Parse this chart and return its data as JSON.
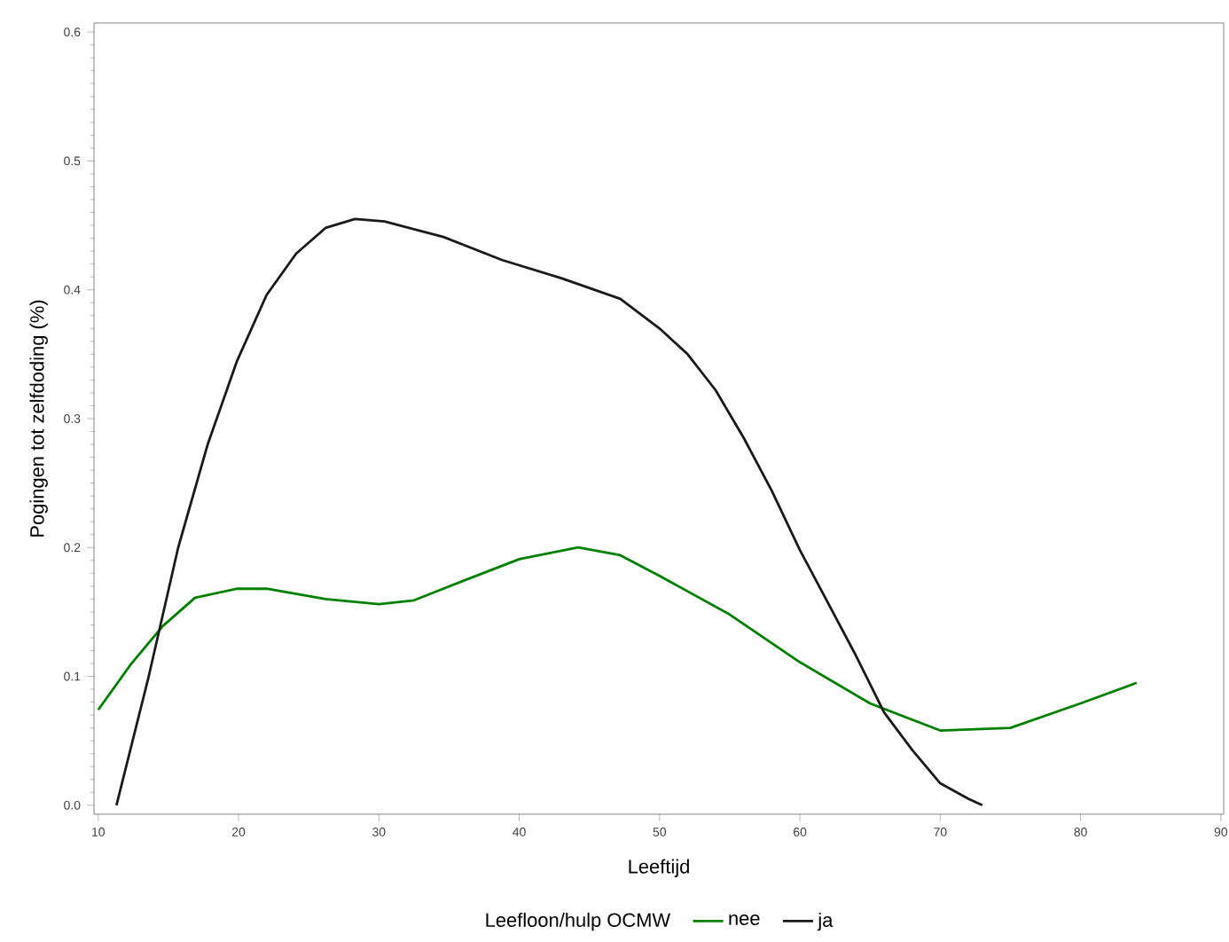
{
  "chart_data": {
    "type": "line",
    "xlabel": "Leeftijd",
    "ylabel": "Pogingen tot zelfdoding (%)",
    "legend_title": "Leefloon/hulp OCMW",
    "xlim": [
      9.7,
      90.2
    ],
    "ylim": [
      -0.007,
      0.607
    ],
    "xticks": [
      10,
      20,
      30,
      40,
      50,
      60,
      70,
      80,
      90
    ],
    "yticks": [
      {
        "value": 0,
        "label": "0.0"
      },
      0.1,
      0.2,
      0.3,
      0.4,
      0.5,
      0.6
    ],
    "legend": "bottom",
    "grid": false,
    "marker": "none",
    "line_style": "solid",
    "series": [
      {
        "name": "nee",
        "color": "#008000",
        "x": [
          10,
          12.3,
          14.6,
          16.9,
          19.9,
          22,
          26.2,
          30,
          32.5,
          36.7,
          40,
          44.2,
          47.2,
          50,
          55,
          60,
          65,
          70,
          75,
          80,
          84
        ],
        "values": [
          0.074,
          0.109,
          0.139,
          0.161,
          0.168,
          0.168,
          0.16,
          0.156,
          0.159,
          0.177,
          0.191,
          0.2,
          0.194,
          0.178,
          0.148,
          0.111,
          0.079,
          0.058,
          0.06,
          0.079,
          0.095
        ]
      },
      {
        "name": "ja",
        "color": "#1a1a1a",
        "x": [
          11.3,
          13.6,
          15.7,
          17.8,
          19.9,
          22,
          24.1,
          26.2,
          28.3,
          30.4,
          34.6,
          38.8,
          43,
          47.2,
          50,
          52,
          54,
          56,
          58,
          60,
          62,
          64,
          66,
          68,
          70,
          72,
          73
        ],
        "values": [
          0,
          0.1,
          0.2,
          0.28,
          0.345,
          0.396,
          0.428,
          0.448,
          0.455,
          0.453,
          0.441,
          0.423,
          0.409,
          0.393,
          0.37,
          0.35,
          0.322,
          0.285,
          0.244,
          0.198,
          0.157,
          0.116,
          0.072,
          0.043,
          0.017,
          0.005,
          0
        ]
      }
    ]
  }
}
